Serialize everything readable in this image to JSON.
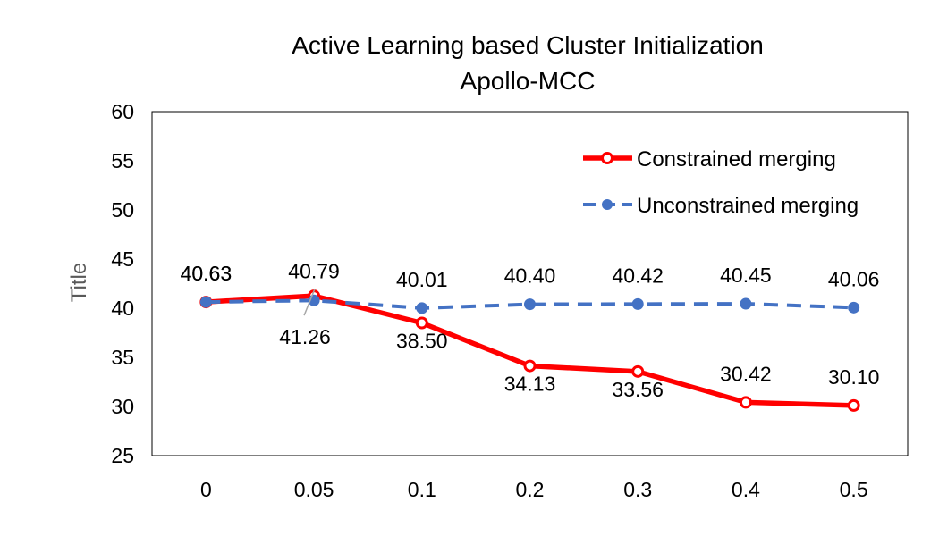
{
  "chart_data": {
    "type": "line",
    "title": "Active Learning based Cluster Initialization",
    "subtitle": "Apollo-MCC",
    "xlabel": "",
    "ylabel": "Title",
    "categories": [
      "0",
      "0.05",
      "0.1",
      "0.2",
      "0.3",
      "0.4",
      "0.5"
    ],
    "ylim": [
      25,
      60
    ],
    "yticks": [
      "25",
      "30",
      "35",
      "40",
      "45",
      "50",
      "55",
      "60"
    ],
    "grid": false,
    "legend_position": "top-right",
    "series": [
      {
        "name": "Constrained merging",
        "color": "#ff0000",
        "style": "solid",
        "values": [
          40.63,
          41.26,
          38.5,
          34.13,
          33.56,
          30.42,
          30.1
        ],
        "labels": [
          "40.63",
          "41.26",
          "38.50",
          "34.13",
          "33.56",
          "30.42",
          "30.10"
        ]
      },
      {
        "name": "Unconstrained merging",
        "color": "#4472c4",
        "style": "dashed",
        "values": [
          40.63,
          40.79,
          40.01,
          40.4,
          40.42,
          40.45,
          40.06
        ],
        "labels": [
          "40.63",
          "40.79",
          "40.01",
          "40.40",
          "40.42",
          "40.45",
          "40.06"
        ]
      }
    ]
  }
}
